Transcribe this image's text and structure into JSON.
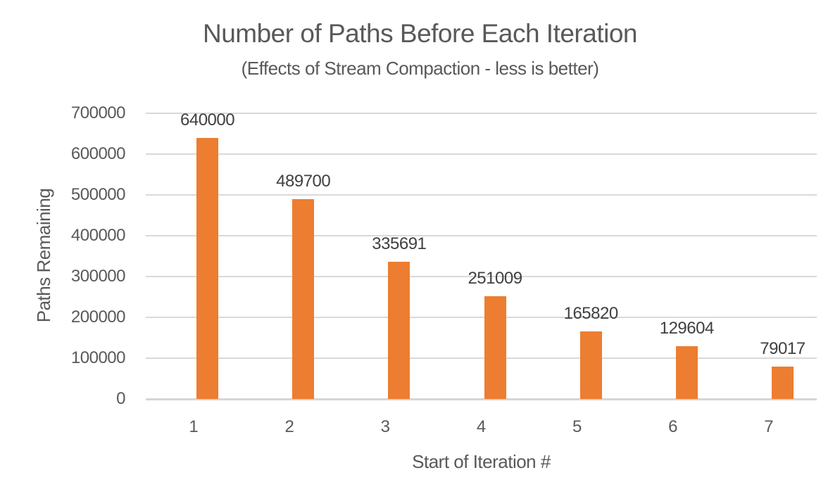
{
  "chart_data": {
    "type": "bar",
    "title": "Number of Paths Before Each Iteration",
    "subtitle": "(Effects of Stream Compaction - less is better)",
    "xlabel": "Start of Iteration #",
    "ylabel": "Paths Remaining",
    "categories": [
      "1",
      "2",
      "3",
      "4",
      "5",
      "6",
      "7"
    ],
    "values": [
      640000,
      489700,
      335691,
      251009,
      165820,
      129604,
      79017
    ],
    "data_labels": [
      "640000",
      "489700",
      "335691",
      "251009",
      "165820",
      "129604",
      "79017"
    ],
    "ylim": [
      0,
      700000
    ],
    "ytick_values": [
      0,
      100000,
      200000,
      300000,
      400000,
      500000,
      600000,
      700000
    ],
    "ytick_labels": [
      "0",
      "100000",
      "200000",
      "300000",
      "400000",
      "500000",
      "600000",
      "700000"
    ],
    "grid": true,
    "legend": "none",
    "colors": {
      "bar": "#ED7D31",
      "gridline": "#D9D9D9",
      "axis_line": "#D6D6D6",
      "title_text": "#595959",
      "tick_text": "#595959",
      "data_label_text": "#404040"
    }
  }
}
